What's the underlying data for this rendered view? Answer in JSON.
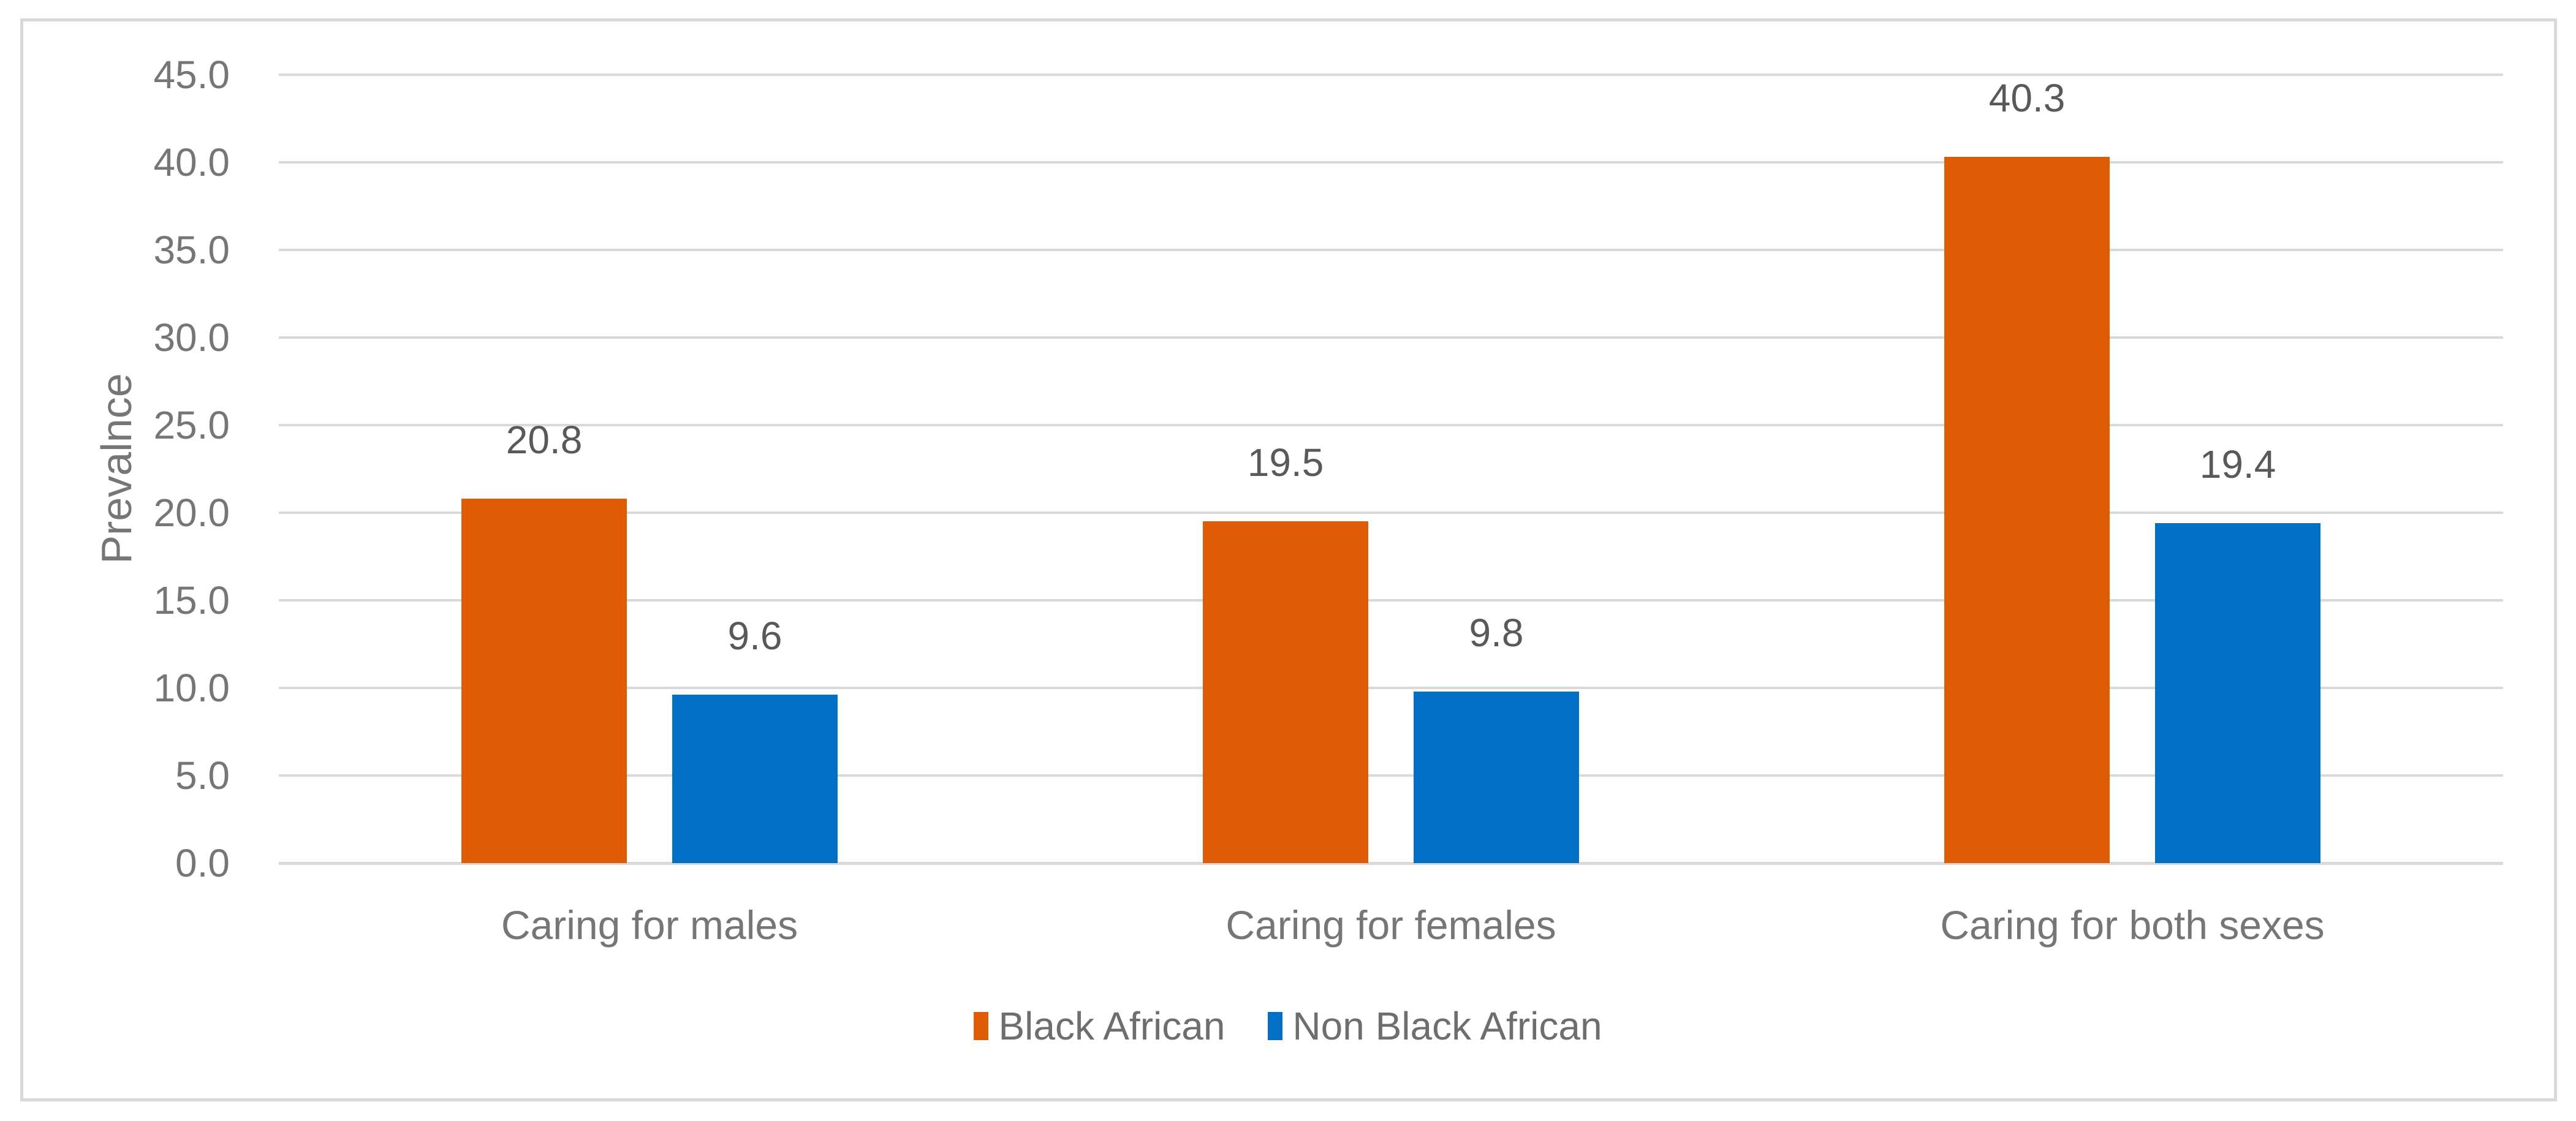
{
  "chart_data": {
    "type": "bar",
    "title": "",
    "ylabel": "Prevalnce",
    "xlabel": "",
    "categories": [
      "Caring for males",
      "Caring for females",
      "Caring for both sexes"
    ],
    "series": [
      {
        "name": "Black African",
        "color": "#DF5B05",
        "values": [
          20.8,
          19.5,
          40.3
        ]
      },
      {
        "name": "Non Black African",
        "color": "#0271C5",
        "values": [
          9.6,
          9.8,
          19.4
        ]
      }
    ],
    "data_labels": [
      [
        "20.8",
        "19.5",
        "40.3"
      ],
      [
        "9.6",
        "9.8",
        "19.4"
      ]
    ],
    "ylim": [
      0,
      45
    ],
    "ytick_step": 5,
    "ytick_labels": [
      "0.0",
      "5.0",
      "10.0",
      "15.0",
      "20.0",
      "25.0",
      "30.0",
      "35.0",
      "40.0",
      "45.0"
    ],
    "grid": true,
    "legend_position": "bottom",
    "colors": {
      "gridline": "#D9D9D9",
      "frame_border": "#D9D9D9",
      "tick_text": "#767676",
      "data_label_text": "#595959",
      "legend_text": "#6e6e6e"
    }
  }
}
